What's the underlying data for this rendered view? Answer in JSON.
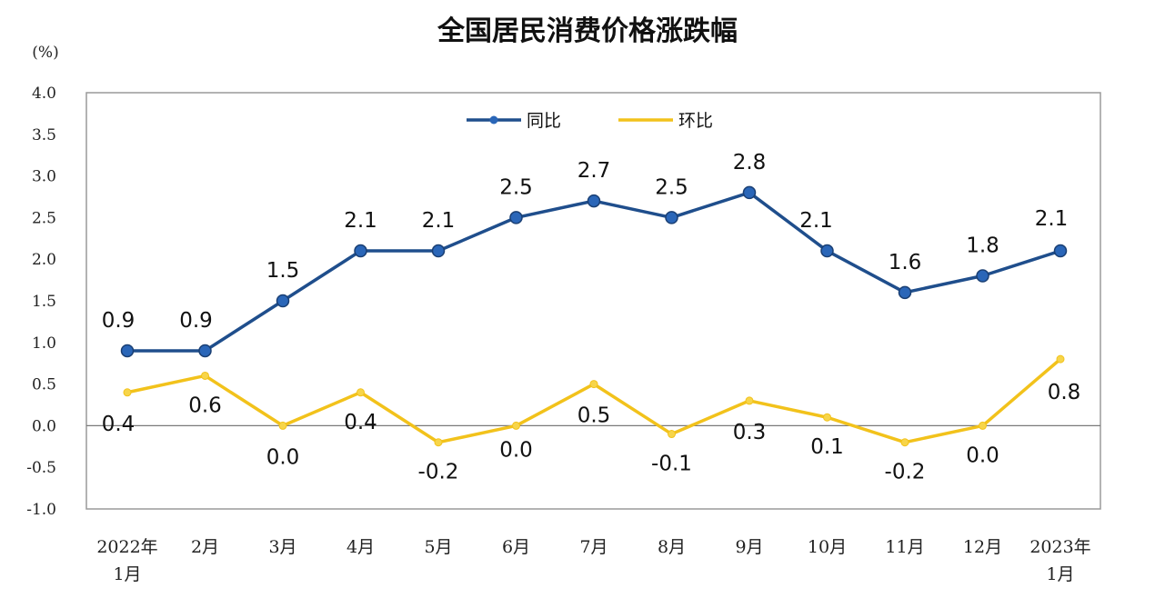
{
  "chart_data": {
    "type": "line",
    "title": "全国居民消费价格涨跌幅",
    "unit_label": "(%)",
    "ylim": [
      -1.0,
      4.0
    ],
    "y_ticks": [
      "4.0",
      "3.5",
      "3.0",
      "2.5",
      "2.0",
      "1.5",
      "1.0",
      "0.5",
      "0.0",
      "-0.5",
      "-1.0"
    ],
    "categories": [
      [
        "2022年",
        "1月"
      ],
      [
        "2月"
      ],
      [
        "3月"
      ],
      [
        "4月"
      ],
      [
        "5月"
      ],
      [
        "6月"
      ],
      [
        "7月"
      ],
      [
        "8月"
      ],
      [
        "9月"
      ],
      [
        "10月"
      ],
      [
        "11月"
      ],
      [
        "12月"
      ],
      [
        "2023年",
        "1月"
      ]
    ],
    "series": [
      {
        "name": "同比",
        "color": "#1f4e8c",
        "values": [
          0.9,
          0.9,
          1.5,
          2.1,
          2.1,
          2.5,
          2.7,
          2.5,
          2.8,
          2.1,
          1.6,
          1.8,
          2.1
        ],
        "labels": [
          "0.9",
          "0.9",
          "1.5",
          "2.1",
          "2.1",
          "2.5",
          "2.7",
          "2.5",
          "2.8",
          "2.1",
          "1.6",
          "1.8",
          "2.1"
        ]
      },
      {
        "name": "环比",
        "color": "#f2c21b",
        "values": [
          0.4,
          0.6,
          0.0,
          0.4,
          -0.2,
          0.0,
          0.5,
          -0.1,
          0.3,
          0.1,
          -0.2,
          0.0,
          0.8
        ],
        "labels": [
          "0.4",
          "0.6",
          "0.0",
          "0.4",
          "-0.2",
          "0.0",
          "0.5",
          "-0.1",
          "0.3",
          "0.1",
          "-0.2",
          "0.0",
          "0.8"
        ]
      }
    ],
    "legend_position": "top-center",
    "grid": false
  }
}
